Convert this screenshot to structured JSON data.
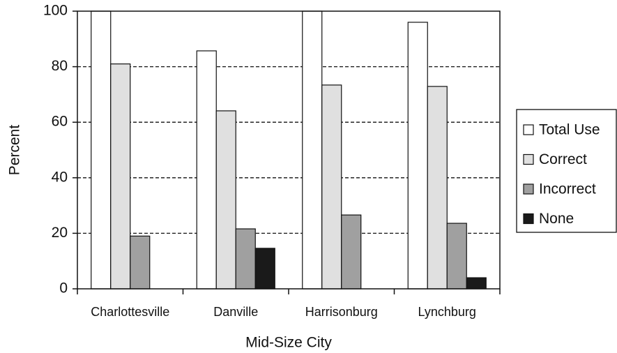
{
  "chart_data": {
    "type": "bar",
    "x_label": "Mid-Size City",
    "y_label": "Percent",
    "categories": [
      "Charlottesville",
      "Danville",
      "Harrisonburg",
      "Lynchburg"
    ],
    "series": [
      {
        "name": "Total Use",
        "color": "#ffffff",
        "values": [
          100,
          85.7,
          100,
          96
        ]
      },
      {
        "name": "Correct",
        "color": "#e0e0e0",
        "values": [
          81,
          64.1,
          73.4,
          72.9
        ]
      },
      {
        "name": "Incorrect",
        "color": "#a0a0a0",
        "values": [
          19,
          21.6,
          26.6,
          23.6
        ]
      },
      {
        "name": "None",
        "color": "#1a1a1a",
        "values": [
          0,
          14.6,
          0,
          4
        ]
      }
    ],
    "ylim": [
      0,
      100
    ],
    "yticks": [
      0,
      20,
      40,
      60,
      80,
      100
    ],
    "grid": true,
    "legend": "right"
  }
}
